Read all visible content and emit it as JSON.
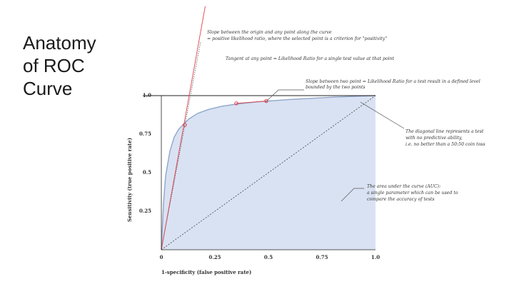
{
  "slide": {
    "title_lines": [
      "Anatomy",
      "of ROC",
      "Curve"
    ]
  },
  "colors": {
    "area_fill": "#d9e2f3",
    "curve": "#8fa6c9",
    "tangent": "#e0424c",
    "annotation": "#555555"
  },
  "chart_data": {
    "type": "area",
    "xlabel": "1-specificity (false positive rate)",
    "ylabel": "Sensitivity (true positive rate)",
    "xlim": [
      0,
      1
    ],
    "ylim": [
      0,
      1
    ],
    "x_ticks": [
      "0",
      "0.25",
      "0.5",
      "0.75",
      "1.0"
    ],
    "y_ticks": [
      "0.25",
      "0.5",
      "0.75",
      "1.0"
    ],
    "curve": {
      "x": [
        0,
        0.01,
        0.02,
        0.04,
        0.06,
        0.08,
        0.1,
        0.13,
        0.17,
        0.22,
        0.28,
        0.35,
        0.45,
        0.6,
        0.8,
        1.0
      ],
      "y": [
        0,
        0.3,
        0.48,
        0.64,
        0.73,
        0.78,
        0.81,
        0.85,
        0.885,
        0.91,
        0.93,
        0.945,
        0.96,
        0.975,
        0.99,
        1.0
      ]
    },
    "highlighted_points": [
      {
        "x": 0.11,
        "y": 0.81
      },
      {
        "x": 0.35,
        "y": 0.95
      },
      {
        "x": 0.49,
        "y": 0.965
      }
    ],
    "diagonal": {
      "x": [
        0,
        1
      ],
      "y": [
        0,
        1
      ]
    },
    "annotations": [
      {
        "name": "slope-origin",
        "lines": [
          "Slope between the origin and any point along the curve",
          "= positive likelihood ratio, where the selected point is a criterion for \"positivity\""
        ]
      },
      {
        "name": "tangent",
        "lines": [
          "Tangent at any point = Likelihood Ratio for a single test value at that point"
        ]
      },
      {
        "name": "slope-two-points",
        "lines": [
          "Slope between two point = Likelihood Ratio for a test result in a defined level",
          "bounded by the two points"
        ]
      },
      {
        "name": "diagonal-line",
        "lines": [
          "The diagonal line represents a test",
          "with no predictive ability,",
          "i.e. no better than a 50:50 coin toss"
        ]
      },
      {
        "name": "auc",
        "lines": [
          "The area under the curve (AUC):",
          "a single parameter which can be used to",
          "compare the accuracy of tests"
        ]
      }
    ]
  }
}
